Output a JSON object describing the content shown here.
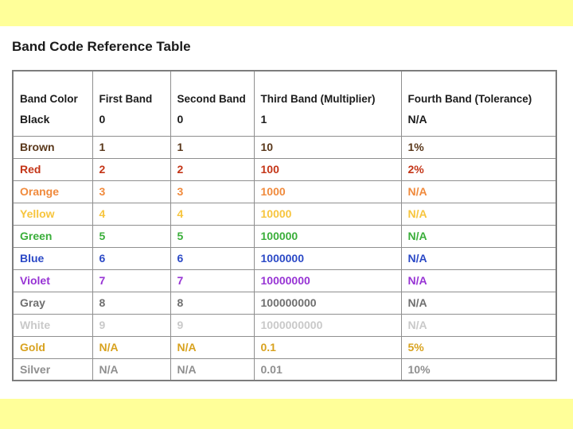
{
  "title": "Band Code Reference Table",
  "theme": {
    "accent_band_color": "#ffff99",
    "table_border_color": "#8f8f8f",
    "title_color": "#1a1a1a"
  },
  "table": {
    "columns": [
      "Band Color",
      "First Band",
      "Second Band",
      "Third Band (Multiplier)",
      "Fourth Band (Tolerance)"
    ],
    "rows": [
      {
        "band": "Black",
        "first": "0",
        "second": "0",
        "multiplier": "1",
        "tolerance": "N/A",
        "color": "#1c1c1c",
        "in_header_cell": true
      },
      {
        "band": "Brown",
        "first": "1",
        "second": "1",
        "multiplier": "10",
        "tolerance": "1%",
        "color": "#5a381b"
      },
      {
        "band": "Red",
        "first": "2",
        "second": "2",
        "multiplier": "100",
        "tolerance": "2%",
        "color": "#c43517"
      },
      {
        "band": "Orange",
        "first": "3",
        "second": "3",
        "multiplier": "1000",
        "tolerance": "N/A",
        "color": "#f08a3c"
      },
      {
        "band": "Yellow",
        "first": "4",
        "second": "4",
        "multiplier": "10000",
        "tolerance": "N/A",
        "color": "#f7c53e"
      },
      {
        "band": "Green",
        "first": "5",
        "second": "5",
        "multiplier": "100000",
        "tolerance": "N/A",
        "color": "#3aae3a"
      },
      {
        "band": "Blue",
        "first": "6",
        "second": "6",
        "multiplier": "1000000",
        "tolerance": "N/A",
        "color": "#2b49c6"
      },
      {
        "band": "Violet",
        "first": "7",
        "second": "7",
        "multiplier": "10000000",
        "tolerance": "N/A",
        "color": "#9733d4"
      },
      {
        "band": "Gray",
        "first": "8",
        "second": "8",
        "multiplier": "100000000",
        "tolerance": "N/A",
        "color": "#6f6f6f"
      },
      {
        "band": "White",
        "first": "9",
        "second": "9",
        "multiplier": "1000000000",
        "tolerance": "N/A",
        "color": "#c9c9c9"
      },
      {
        "band": "Gold",
        "first": "N/A",
        "second": "N/A",
        "multiplier": "0.1",
        "tolerance": "5%",
        "color": "#d8a21f"
      },
      {
        "band": "Silver",
        "first": "N/A",
        "second": "N/A",
        "multiplier": "0.01",
        "tolerance": "10%",
        "color": "#8f8f8f"
      }
    ]
  }
}
